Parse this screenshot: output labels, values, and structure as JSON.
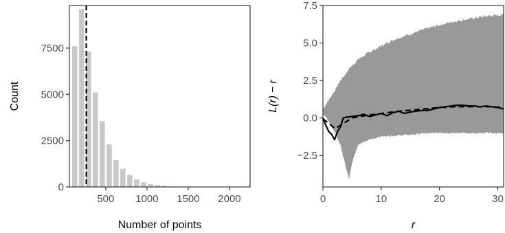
{
  "chart_data": [
    {
      "type": "bar",
      "title": "",
      "xlabel": "Number of points",
      "ylabel": "Count",
      "xlim": [
        60,
        2250
      ],
      "ylim": [
        0,
        9800
      ],
      "bar_width": 80,
      "bar_color": "#c8c8c8",
      "x": [
        125,
        208,
        292,
        375,
        458,
        542,
        625,
        708,
        792,
        875,
        958,
        1042,
        1125,
        1208,
        1292,
        1375,
        1458,
        1542,
        1625,
        1708,
        1792,
        1875,
        1958,
        2042,
        2125
      ],
      "values": [
        7600,
        9600,
        7300,
        5100,
        3550,
        2300,
        1450,
        980,
        650,
        400,
        250,
        150,
        90,
        55,
        35,
        20,
        12,
        8,
        5,
        3,
        2,
        1,
        1,
        1,
        1
      ],
      "vline": {
        "x": 265,
        "style": "dashed",
        "color": "#000000"
      },
      "xticks": [
        500,
        1000,
        1500,
        2000
      ],
      "xtick_labels": [
        "500",
        "1000",
        "1500",
        "2000"
      ],
      "yticks": [
        0,
        2500,
        5000,
        7500
      ],
      "ytick_labels": [
        "0",
        "2500",
        "5000",
        "7500"
      ],
      "grid": false
    },
    {
      "type": "line",
      "title": "",
      "xlabel": "r",
      "ylabel_parts": [
        "L(r)",
        "−",
        "r"
      ],
      "xlim": [
        0,
        31
      ],
      "ylim": [
        -4.6,
        7.5
      ],
      "envelope_color": "#999999",
      "envelope": {
        "x": [
          0,
          1,
          2,
          3,
          4,
          4.5,
          5,
          6,
          8,
          10,
          12,
          15,
          18,
          20,
          22,
          25,
          28,
          30,
          31
        ],
        "lower": [
          0.3,
          -0.2,
          -0.9,
          -1.8,
          -3.4,
          -4.1,
          -3.0,
          -1.8,
          -1.4,
          -1.25,
          -1.2,
          -1.1,
          -1.0,
          -1.0,
          -1.0,
          -1.0,
          -1.0,
          -1.0,
          -1.0
        ],
        "upper": [
          0.6,
          1.2,
          1.8,
          2.5,
          3.0,
          3.3,
          3.5,
          3.9,
          4.4,
          4.8,
          5.2,
          5.6,
          6.0,
          6.2,
          6.4,
          6.6,
          6.8,
          6.85,
          6.9
        ]
      },
      "series": [
        {
          "style": "solid",
          "color": "#000000",
          "x": [
            0,
            0.5,
            1,
            1.5,
            2,
            2.5,
            3,
            3.5,
            4,
            5,
            6,
            7,
            8,
            9,
            10,
            11,
            12,
            13,
            14,
            15,
            16,
            17,
            18,
            19,
            20,
            21,
            22,
            23,
            24,
            25,
            26,
            27,
            28,
            29,
            30,
            31
          ],
          "y": [
            0,
            -0.5,
            -0.9,
            -1.1,
            -1.45,
            -0.9,
            -0.6,
            0.0,
            0.05,
            0.1,
            0.15,
            0.25,
            0.1,
            0.2,
            0.3,
            0.15,
            0.35,
            0.45,
            0.3,
            0.4,
            0.45,
            0.5,
            0.5,
            0.6,
            0.7,
            0.75,
            0.8,
            0.85,
            0.85,
            0.8,
            0.8,
            0.75,
            0.8,
            0.75,
            0.7,
            0.6
          ]
        },
        {
          "style": "dashed",
          "color": "#000000",
          "x": [
            0,
            1,
            2,
            3,
            5,
            8,
            10,
            13,
            16,
            20,
            23,
            26,
            29,
            31
          ],
          "y": [
            -0.05,
            -0.35,
            -0.7,
            -0.5,
            0.0,
            0.2,
            0.3,
            0.45,
            0.55,
            0.7,
            0.75,
            0.75,
            0.75,
            0.7
          ]
        }
      ],
      "xticks": [
        0,
        10,
        20,
        30
      ],
      "xtick_labels": [
        "0",
        "10",
        "20",
        "30"
      ],
      "yticks": [
        -2.5,
        0.0,
        2.5,
        5.0,
        7.5
      ],
      "ytick_labels": [
        "−2.5",
        "0.0",
        "2.5",
        "5.0",
        "7.5"
      ],
      "grid": false
    }
  ]
}
